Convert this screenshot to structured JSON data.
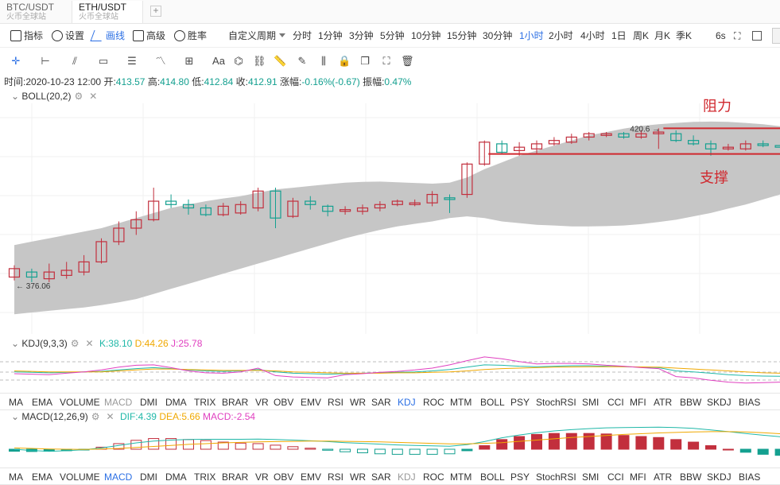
{
  "pair_tabs": [
    {
      "name": "BTC/USDT",
      "exchange": "火币全球站"
    },
    {
      "name": "ETH/USDT",
      "exchange": "火币全球站"
    }
  ],
  "add_tab": "+",
  "toolbar": {
    "indicator": "指标",
    "settings": "设置",
    "draw": "画线",
    "advanced": "高级",
    "winrate": "胜率",
    "custom_period": "自定义周期"
  },
  "periods": [
    "分时",
    "1分钟",
    "3分钟",
    "5分钟",
    "10分钟",
    "15分钟",
    "30分钟",
    "1小时",
    "2小时",
    "4小时",
    "1日",
    "周K",
    "月K",
    "季K"
  ],
  "selected_period": "1小时",
  "refresh": "6s",
  "text_tool": "Aa",
  "info": {
    "time_label": "时间:",
    "time": "2020-10-23 12:00",
    "open_label": "开:",
    "open": "413.57",
    "high_label": "高:",
    "high": "414.80",
    "low_label": "低:",
    "low": "412.84",
    "close_label": "收:",
    "close": "412.91",
    "change_label": "涨幅:",
    "change": "-0.16%(-0.67)",
    "amplitude_label": "振幅:",
    "amplitude": "0.47%"
  },
  "boll": {
    "label": "BOLL(20,2)",
    "resistance": "阻力",
    "support": "支撑",
    "high_mark": "420.6",
    "low_mark": "376.06"
  },
  "kdj": {
    "label": "KDJ(9,3,3)",
    "k": "K:38.10",
    "d": "D:44.26",
    "j": "J:25.78"
  },
  "macd": {
    "label": "MACD(12,26,9)",
    "dif": "DIF:4.39",
    "dea": "DEA:5.66",
    "macd": "MACD:-2.54"
  },
  "indicator_tabs": [
    "MA",
    "EMA",
    "VOLUME",
    "MACD",
    "DMI",
    "DMA",
    "TRIX",
    "BRAR",
    "VR",
    "OBV",
    "EMV",
    "RSI",
    "WR",
    "SAR",
    "KDJ",
    "ROC",
    "MTM",
    "BOLL",
    "PSY",
    "StochRSI",
    "SMI",
    "CCI",
    "MFI",
    "ATR",
    "BBW",
    "SKDJ",
    "BIAS"
  ],
  "tabs_row1_active": "KDJ",
  "tabs_row2_active": "MACD",
  "colors": {
    "up": "#14a090",
    "down": "#c22f3d",
    "band": "#c6c6c6",
    "selected": "#2b6fe4",
    "kline": "#20b8a8",
    "dline": "#f0a800",
    "jline": "#e040c0"
  },
  "chart_data": {
    "type": "candlestick",
    "candles": [
      {
        "o": 376.5,
        "c": 379.0,
        "h": 380.0,
        "l": 375.5
      },
      {
        "o": 378.0,
        "c": 376.5,
        "h": 379.0,
        "l": 375.0
      },
      {
        "o": 376.0,
        "c": 378.0,
        "h": 380.5,
        "l": 375.0
      },
      {
        "o": 377.0,
        "c": 378.5,
        "h": 381.0,
        "l": 376.0
      },
      {
        "o": 378.0,
        "c": 381.0,
        "h": 383.0,
        "l": 377.0
      },
      {
        "o": 381.0,
        "c": 387.0,
        "h": 388.0,
        "l": 380.5
      },
      {
        "o": 387.0,
        "c": 391.0,
        "h": 393.0,
        "l": 386.0
      },
      {
        "o": 391.0,
        "c": 393.5,
        "h": 396.0,
        "l": 389.0
      },
      {
        "o": 393.5,
        "c": 399.0,
        "h": 403.0,
        "l": 393.0
      },
      {
        "o": 399.0,
        "c": 398.0,
        "h": 401.0,
        "l": 397.0
      },
      {
        "o": 398.0,
        "c": 397.0,
        "h": 399.5,
        "l": 395.0
      },
      {
        "o": 397.0,
        "c": 395.0,
        "h": 398.0,
        "l": 394.5
      },
      {
        "o": 395.0,
        "c": 397.5,
        "h": 398.5,
        "l": 394.5
      },
      {
        "o": 395.5,
        "c": 398.0,
        "h": 399.0,
        "l": 395.0
      },
      {
        "o": 397.0,
        "c": 402.0,
        "h": 403.0,
        "l": 396.0
      },
      {
        "o": 402.0,
        "c": 394.0,
        "h": 403.0,
        "l": 391.0
      },
      {
        "o": 394.5,
        "c": 399.0,
        "h": 400.0,
        "l": 394.0
      },
      {
        "o": 399.0,
        "c": 398.0,
        "h": 400.5,
        "l": 396.5
      },
      {
        "o": 397.5,
        "c": 396.0,
        "h": 398.0,
        "l": 394.5
      },
      {
        "o": 396.0,
        "c": 396.5,
        "h": 397.5,
        "l": 395.0
      },
      {
        "o": 396.0,
        "c": 397.0,
        "h": 398.0,
        "l": 395.0
      },
      {
        "o": 397.0,
        "c": 398.0,
        "h": 399.0,
        "l": 396.0
      },
      {
        "o": 398.0,
        "c": 399.0,
        "h": 399.5,
        "l": 397.5
      },
      {
        "o": 398.0,
        "c": 398.5,
        "h": 399.5,
        "l": 397.5
      },
      {
        "o": 398.5,
        "c": 401.0,
        "h": 402.0,
        "l": 397.5
      },
      {
        "o": 400.0,
        "c": 399.5,
        "h": 401.0,
        "l": 395.5
      },
      {
        "o": 401.0,
        "c": 410.0,
        "h": 410.5,
        "l": 400.0
      },
      {
        "o": 410.0,
        "c": 416.5,
        "h": 417.0,
        "l": 409.5
      },
      {
        "o": 416.0,
        "c": 413.5,
        "h": 417.0,
        "l": 413.0
      },
      {
        "o": 414.0,
        "c": 415.0,
        "h": 416.5,
        "l": 412.5
      },
      {
        "o": 414.5,
        "c": 416.0,
        "h": 417.0,
        "l": 413.0
      },
      {
        "o": 416.0,
        "c": 417.0,
        "h": 418.0,
        "l": 415.5
      },
      {
        "o": 416.5,
        "c": 418.0,
        "h": 419.0,
        "l": 416.0
      },
      {
        "o": 418.0,
        "c": 419.0,
        "h": 419.5,
        "l": 417.0
      },
      {
        "o": 418.5,
        "c": 419.0,
        "h": 419.5,
        "l": 418.0
      },
      {
        "o": 419.0,
        "c": 418.0,
        "h": 419.5,
        "l": 417.5
      },
      {
        "o": 418.0,
        "c": 419.0,
        "h": 420.0,
        "l": 417.5
      },
      {
        "o": 419.0,
        "c": 419.5,
        "h": 420.6,
        "l": 414.5
      },
      {
        "o": 419.0,
        "c": 417.0,
        "h": 420.0,
        "l": 416.5
      },
      {
        "o": 417.0,
        "c": 416.0,
        "h": 418.5,
        "l": 415.5
      },
      {
        "o": 416.0,
        "c": 414.5,
        "h": 417.0,
        "l": 412.5
      },
      {
        "o": 414.5,
        "c": 415.0,
        "h": 416.0,
        "l": 414.0
      },
      {
        "o": 414.5,
        "c": 416.0,
        "h": 417.0,
        "l": 414.0
      },
      {
        "o": 416.0,
        "c": 415.5,
        "h": 417.0,
        "l": 415.0
      },
      {
        "o": 415.5,
        "c": 415.0,
        "h": 416.0,
        "l": 414.5
      },
      {
        "o": 415.5,
        "c": 414.5,
        "h": 416.0,
        "l": 413.0
      }
    ],
    "boll_upper": [
      386,
      387,
      388,
      389,
      390,
      391,
      392.5,
      394,
      395.5,
      397,
      398,
      399,
      399.8,
      400.5,
      401.5,
      402.5,
      403,
      403.5,
      404,
      404.5,
      404.7,
      404.8,
      404.6,
      404.4,
      404.2,
      404.5,
      406,
      408.5,
      410.5,
      412.5,
      414,
      415.5,
      417,
      418.5,
      419.5,
      420.5,
      421.3,
      421.8,
      422.2,
      422.5,
      422.6,
      422.5,
      422.2,
      421.8,
      421.2,
      420.5
    ],
    "boll_lower": [
      365.5,
      366,
      366.5,
      367,
      367.5,
      368.2,
      369,
      370,
      371.5,
      373,
      374.5,
      376,
      377.5,
      379,
      380.5,
      382,
      383.5,
      385,
      386.5,
      388,
      389.3,
      390.5,
      391.5,
      392.3,
      393,
      394,
      394.5,
      394,
      393,
      392.5,
      392,
      391.8,
      391.5,
      391.5,
      391.6,
      391.8,
      392.2,
      392.8,
      393.5,
      394.5,
      395.5,
      396.8,
      398,
      399.5,
      401,
      403
    ],
    "resistance_price": 420.6,
    "support_price": 413.0,
    "kdj_k": [
      48,
      47,
      46,
      47,
      48,
      49,
      52,
      55,
      57,
      55,
      52,
      50,
      49,
      50,
      53,
      48,
      45,
      44,
      43,
      44,
      45,
      46,
      47,
      48,
      50,
      53,
      58,
      63,
      62,
      60,
      59,
      60,
      61,
      61,
      60,
      59,
      58,
      57,
      50,
      48,
      45,
      42,
      40,
      39,
      38.5,
      38.1
    ],
    "kdj_d": [
      50,
      49,
      48,
      48,
      48,
      48,
      50,
      52,
      54,
      54,
      53,
      52,
      51,
      51,
      51,
      50,
      48,
      47,
      46,
      45,
      45,
      45,
      46,
      46,
      47,
      48,
      50,
      53,
      55,
      56,
      57,
      58,
      58.5,
      59,
      59,
      59,
      58.5,
      58,
      56,
      54,
      52,
      50,
      48,
      46,
      45,
      44.3
    ],
    "kdj_j": [
      44,
      43,
      42,
      45,
      48,
      52,
      58,
      62,
      63,
      57,
      50,
      46,
      45,
      48,
      56,
      40,
      37,
      36,
      35,
      42,
      44,
      47,
      49,
      52,
      56,
      63,
      72,
      80,
      76,
      70,
      65,
      66,
      66,
      65,
      62,
      60,
      57,
      55,
      38,
      35,
      30,
      26,
      24,
      25,
      26,
      25.8
    ],
    "macd_dif": [
      0,
      -0.5,
      -0.8,
      -0.6,
      -0.2,
      0.5,
      1.5,
      2.5,
      3.2,
      3.6,
      3.8,
      3.9,
      3.9,
      3.9,
      4,
      3.8,
      3.6,
      3.3,
      3,
      2.6,
      2.3,
      2,
      1.7,
      1.5,
      1.3,
      1.2,
      1.8,
      3,
      4.5,
      5.6,
      6.5,
      7.2,
      7.7,
      8.1,
      8.4,
      8.5,
      8.6,
      8.7,
      8.5,
      8.2,
      7.6,
      6.9,
      6.2,
      5.5,
      4.9,
      4.4
    ],
    "macd_dea": [
      0.5,
      0.3,
      0.1,
      0,
      -0.1,
      0.1,
      0.3,
      0.7,
      1.1,
      1.5,
      1.9,
      2.2,
      2.5,
      2.7,
      2.9,
      3,
      3.1,
      3.2,
      3.2,
      3.1,
      3,
      2.9,
      2.7,
      2.5,
      2.3,
      2.1,
      2.1,
      2.3,
      2.6,
      3.1,
      3.6,
      4.1,
      4.6,
      5,
      5.4,
      5.8,
      6.1,
      6.4,
      6.6,
      6.8,
      6.9,
      6.9,
      6.8,
      6.5,
      6.1,
      5.7
    ],
    "macd_hist": [
      -0.8,
      -0.9,
      -0.8,
      -0.6,
      -0.2,
      0.8,
      2.2,
      3.5,
      4.2,
      4.2,
      3.8,
      3.4,
      2.8,
      2.4,
      2.2,
      1.6,
      1,
      0.4,
      -0.4,
      -1,
      -1.4,
      -1.8,
      -2,
      -2,
      -2,
      -1.8,
      -0.6,
      1.4,
      3.8,
      5,
      5.8,
      6.2,
      6.2,
      6.2,
      6,
      5.4,
      5,
      4.6,
      3.8,
      2.8,
      1.4,
      0,
      -1.2,
      -2,
      -2.4,
      -2.6
    ]
  }
}
